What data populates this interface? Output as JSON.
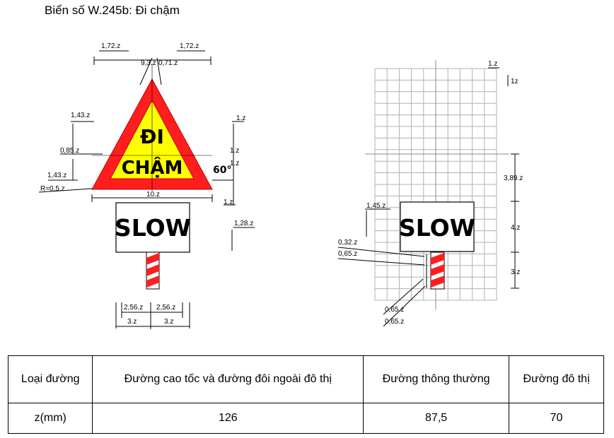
{
  "title": "Biển số W.245b: Đi chậm",
  "sign": {
    "triangle_line1": "ĐI",
    "triangle_line2": "CHẬM",
    "plate_text": "SLOW",
    "angle_label": "60°"
  },
  "left_dims": {
    "top_left": "1,72.z",
    "top_right": "1,72.z",
    "top_mid_a": "9,3.z",
    "top_mid_b": "0,71.z",
    "left_1": "1,43.z",
    "left_2": "0,85.z",
    "left_3": "1,43.z",
    "radius": "R=0,5.z",
    "right_1": "1.z",
    "right_2": "1.z",
    "right_3": "1.z",
    "right_4": "1.z",
    "base_width": "10.z",
    "plate_gap": "1,28.z",
    "post_l1": "2,56.z",
    "post_r1": "2,56.z",
    "post_l2": "3.z",
    "post_r2": "3.z"
  },
  "right_dims": {
    "grid_cell": "1.z",
    "grid_cell_v": "1z",
    "h1": "3,89.z",
    "h2": "4.z",
    "h3": "3.z",
    "plate_left": "1,45.z",
    "stripe1": "0,32.z",
    "stripe2": "0,65.z",
    "stripe3": "0,65.z",
    "stripe4": "0,65.z"
  },
  "table": {
    "headers": [
      "Loại đường",
      "Đường cao tốc và đường đôi ngoài đô thị",
      "Đường thông thường",
      "Đường đô thị"
    ],
    "row_label": "z(mm)",
    "values": [
      "126",
      "87,5",
      "70"
    ]
  },
  "colors": {
    "sign_red": "#ff1e1e",
    "sign_yellow": "#ffff00",
    "grid_line": "#b0b0b0"
  }
}
